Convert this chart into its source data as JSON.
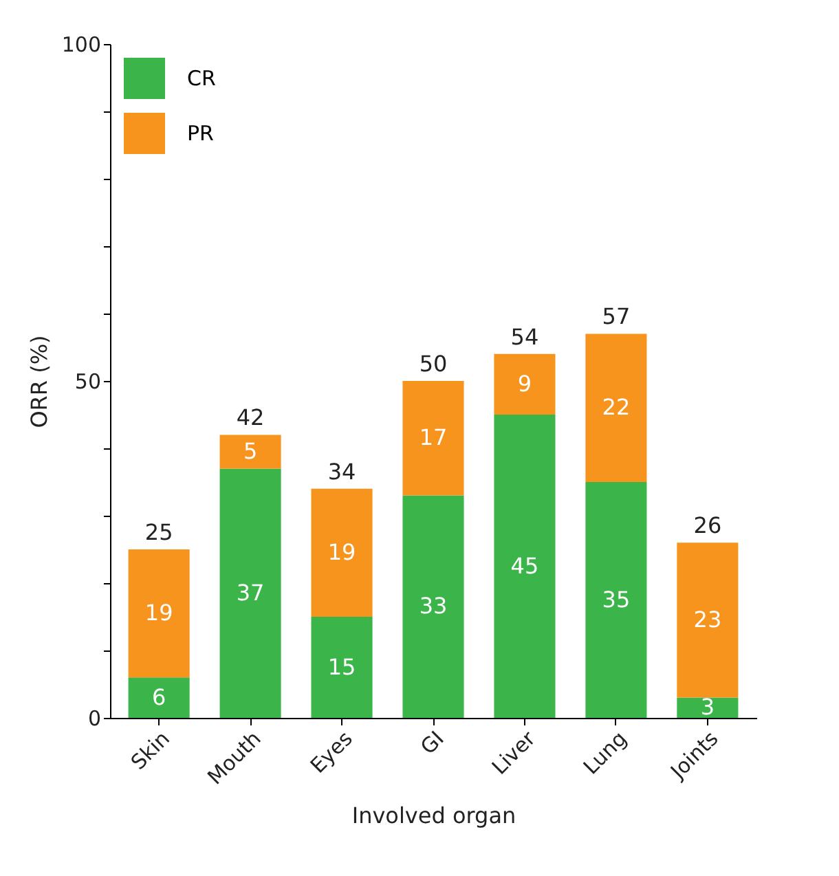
{
  "chart_data": {
    "type": "bar",
    "stacked": true,
    "xlabel": "Involved organ",
    "ylabel": "ORR (%)",
    "categories": [
      "Skin",
      "Mouth",
      "Eyes",
      "GI",
      "Liver",
      "Lung",
      "Joints"
    ],
    "series": [
      {
        "name": "CR",
        "color": "#3bb54a",
        "values": [
          6,
          37,
          15,
          33,
          45,
          35,
          3
        ]
      },
      {
        "name": "PR",
        "color": "#f7941e",
        "values": [
          19,
          5,
          19,
          17,
          9,
          22,
          23
        ]
      }
    ],
    "totals": [
      "25",
      "42",
      "34",
      "50",
      "54",
      "57",
      "26"
    ],
    "data_labels": true,
    "ylim": [
      0,
      100
    ],
    "yticks": [
      0,
      {
        "value": 10,
        "label": null
      },
      {
        "value": 20,
        "label": null
      },
      {
        "value": 30,
        "label": null
      },
      {
        "value": 40,
        "label": null
      },
      50,
      {
        "value": 60,
        "label": null
      },
      {
        "value": 70,
        "label": null
      },
      {
        "value": 80,
        "label": null
      },
      {
        "value": 90,
        "label": null
      },
      100
    ],
    "legend": "top left",
    "grid": false
  }
}
